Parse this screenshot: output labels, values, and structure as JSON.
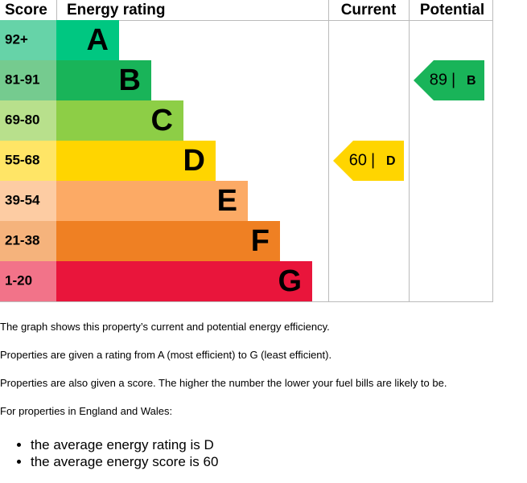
{
  "header": {
    "score": "Score",
    "rating": "Energy rating",
    "current": "Current",
    "potential": "Potential"
  },
  "bands": [
    {
      "score": "92+",
      "letter": "A",
      "color": "#00c781",
      "score_color": "#66d3a8"
    },
    {
      "score": "81-91",
      "letter": "B",
      "color": "#19b459",
      "score_color": "#75cb8f"
    },
    {
      "score": "69-80",
      "letter": "C",
      "color": "#8dce46",
      "score_color": "#b8e08c"
    },
    {
      "score": "55-68",
      "letter": "D",
      "color": "#ffd500",
      "score_color": "#ffe566"
    },
    {
      "score": "39-54",
      "letter": "E",
      "color": "#fcaa65",
      "score_color": "#fdcca3"
    },
    {
      "score": "21-38",
      "letter": "F",
      "color": "#ef8023",
      "score_color": "#f5b37c"
    },
    {
      "score": "1-20",
      "letter": "G",
      "color": "#e9153b",
      "score_color": "#f27389"
    }
  ],
  "current": {
    "score": 60,
    "letter": "D",
    "color": "#ffd500"
  },
  "potential": {
    "score": 89,
    "letter": "B",
    "color": "#19b459"
  },
  "paragraphs": [
    "The graph shows this property’s current and potential energy efficiency.",
    "Properties are given a rating from A (most efficient) to G (least efficient).",
    "Properties are also given a score. The higher the number the lower your fuel bills are likely to be.",
    "For properties in England and Wales:"
  ],
  "bullets": [
    "the average energy rating is D",
    "the average energy score is 60"
  ]
}
